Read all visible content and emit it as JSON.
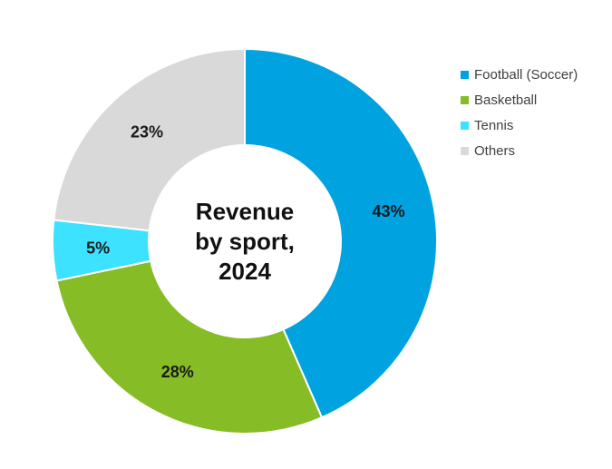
{
  "chart_data": {
    "type": "pie",
    "donut": true,
    "title": "Revenue by sport, 2024",
    "title_lines": [
      "Revenue",
      "by sport,",
      "2024"
    ],
    "slices": [
      {
        "label": "Football (Soccer)",
        "value": 43,
        "display": "43%",
        "color": "#00a2e0"
      },
      {
        "label": "Basketball",
        "value": 28,
        "display": "28%",
        "color": "#86bc25"
      },
      {
        "label": "Tennis",
        "value": 5,
        "display": "5%",
        "color": "#3ce2ff"
      },
      {
        "label": "Others",
        "value": 23,
        "display": "23%",
        "color": "#d9d9d9"
      }
    ],
    "start_angle_deg": 0,
    "direction": "clockwise",
    "legend_position": "top-right"
  }
}
